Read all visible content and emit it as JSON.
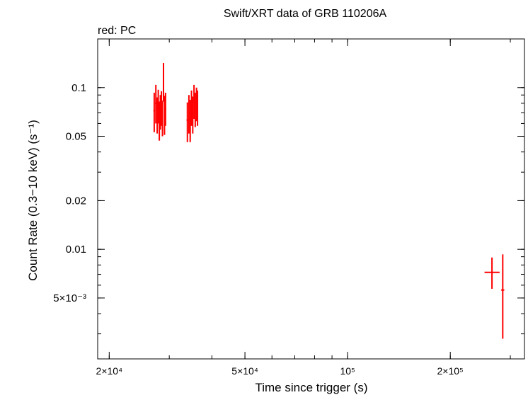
{
  "chart_data": {
    "type": "scatter",
    "title": "Swift/XRT data of GRB 110206A",
    "subtitle": "red: PC",
    "xlabel": "Time since trigger (s)",
    "ylabel": "Count Rate (0.3−10 keV) (s⁻¹)",
    "xscale": "log",
    "yscale": "log",
    "xlim": [
      18500,
      330000
    ],
    "ylim": [
      0.0021,
      0.2
    ],
    "x_ticks": [
      {
        "value": 20000,
        "label": "2×10⁴"
      },
      {
        "value": 50000,
        "label": "5×10⁴"
      },
      {
        "value": 100000,
        "label": "10⁵"
      },
      {
        "value": 200000,
        "label": "2×10⁵"
      }
    ],
    "y_ticks": [
      {
        "value": 0.1,
        "label": "0.1"
      },
      {
        "value": 0.05,
        "label": "0.05"
      },
      {
        "value": 0.02,
        "label": "0.02"
      },
      {
        "value": 0.01,
        "label": "0.01"
      },
      {
        "value": 0.005,
        "label": "5×10⁻³"
      }
    ],
    "grid": false,
    "series": [
      {
        "color": "#ff0000",
        "points": [
          {
            "x": 27100,
            "xlo": 26950,
            "xhi": 27250,
            "y": 0.072,
            "ylo": 0.053,
            "yhi": 0.093
          },
          {
            "x": 27400,
            "xlo": 27250,
            "xhi": 27550,
            "y": 0.08,
            "ylo": 0.06,
            "yhi": 0.104
          },
          {
            "x": 27650,
            "xlo": 27550,
            "xhi": 27750,
            "y": 0.068,
            "ylo": 0.052,
            "yhi": 0.087
          },
          {
            "x": 27850,
            "xlo": 27750,
            "xhi": 27950,
            "y": 0.077,
            "ylo": 0.06,
            "yhi": 0.097
          },
          {
            "x": 28050,
            "xlo": 27950,
            "xhi": 28150,
            "y": 0.064,
            "ylo": 0.047,
            "yhi": 0.082
          },
          {
            "x": 28250,
            "xlo": 28150,
            "xhi": 28350,
            "y": 0.071,
            "ylo": 0.055,
            "yhi": 0.09
          },
          {
            "x": 28450,
            "xlo": 28350,
            "xhi": 28550,
            "y": 0.076,
            "ylo": 0.058,
            "yhi": 0.095
          },
          {
            "x": 28650,
            "xlo": 28550,
            "xhi": 28750,
            "y": 0.065,
            "ylo": 0.05,
            "yhi": 0.083
          },
          {
            "x": 28850,
            "xlo": 28750,
            "xhi": 28950,
            "y": 0.105,
            "ylo": 0.082,
            "yhi": 0.142
          },
          {
            "x": 29050,
            "xlo": 28950,
            "xhi": 29150,
            "y": 0.068,
            "ylo": 0.051,
            "yhi": 0.089
          },
          {
            "x": 29250,
            "xlo": 29150,
            "xhi": 29400,
            "y": 0.074,
            "ylo": 0.058,
            "yhi": 0.093
          },
          {
            "x": 33900,
            "xlo": 33700,
            "xhi": 34100,
            "y": 0.063,
            "ylo": 0.046,
            "yhi": 0.081
          },
          {
            "x": 34250,
            "xlo": 34100,
            "xhi": 34400,
            "y": 0.07,
            "ylo": 0.052,
            "yhi": 0.09
          },
          {
            "x": 34550,
            "xlo": 34400,
            "xhi": 34700,
            "y": 0.064,
            "ylo": 0.046,
            "yhi": 0.084
          },
          {
            "x": 34850,
            "xlo": 34700,
            "xhi": 35000,
            "y": 0.076,
            "ylo": 0.058,
            "yhi": 0.096
          },
          {
            "x": 35150,
            "xlo": 35000,
            "xhi": 35300,
            "y": 0.069,
            "ylo": 0.052,
            "yhi": 0.088
          },
          {
            "x": 35450,
            "xlo": 35300,
            "xhi": 35600,
            "y": 0.082,
            "ylo": 0.064,
            "yhi": 0.104
          },
          {
            "x": 35750,
            "xlo": 35600,
            "xhi": 35900,
            "y": 0.073,
            "ylo": 0.057,
            "yhi": 0.093
          },
          {
            "x": 36050,
            "xlo": 35900,
            "xhi": 36200,
            "y": 0.08,
            "ylo": 0.062,
            "yhi": 0.1
          },
          {
            "x": 36300,
            "xlo": 36200,
            "xhi": 36400,
            "y": 0.075,
            "ylo": 0.058,
            "yhi": 0.096
          },
          {
            "x": 265000,
            "xlo": 252000,
            "xhi": 279000,
            "y": 0.0072,
            "ylo": 0.0057,
            "yhi": 0.0089
          },
          {
            "x": 285000,
            "xlo": 282000,
            "xhi": 288000,
            "y": 0.0056,
            "ylo": 0.0028,
            "yhi": 0.0093
          }
        ]
      }
    ]
  }
}
